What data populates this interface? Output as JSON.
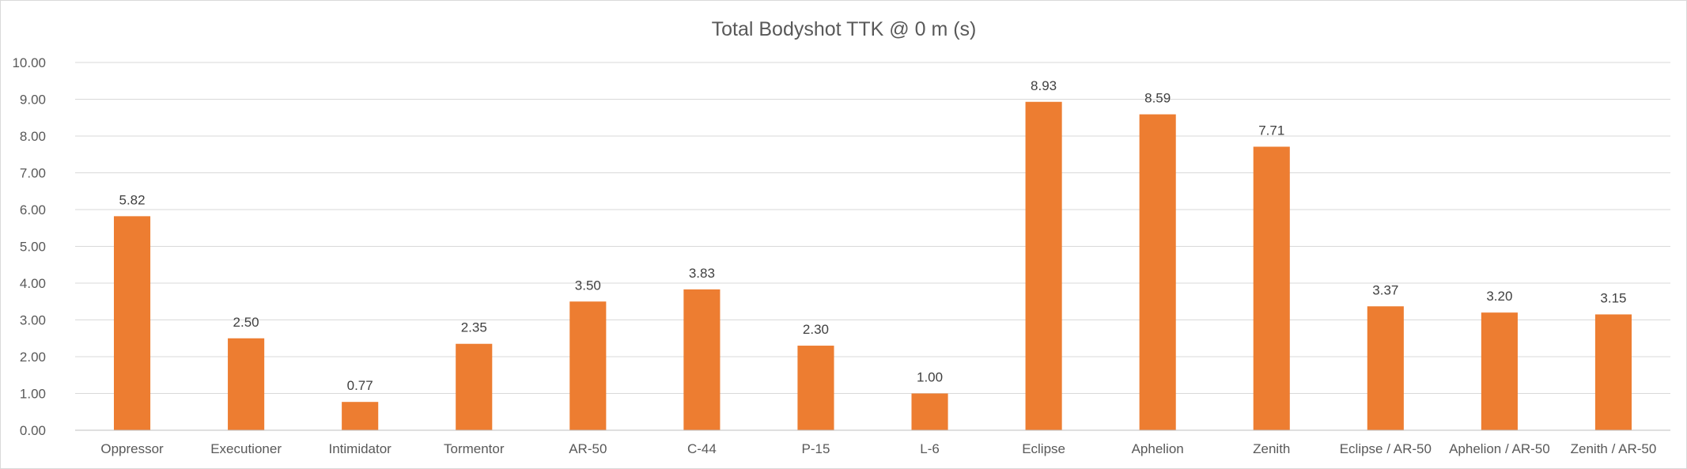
{
  "chart_data": {
    "type": "bar",
    "title": "Total Bodyshot TTK @ 0 m (s)",
    "xlabel": "",
    "ylabel": "",
    "categories": [
      "Oppressor",
      "Executioner",
      "Intimidator",
      "Tormentor",
      "AR-50",
      "C-44",
      "P-15",
      "L-6",
      "Eclipse",
      "Aphelion",
      "Zenith",
      "Eclipse / AR-50",
      "Aphelion / AR-50",
      "Zenith / AR-50"
    ],
    "values": [
      5.82,
      2.5,
      0.77,
      2.35,
      3.5,
      3.83,
      2.3,
      1.0,
      8.93,
      8.59,
      7.71,
      3.37,
      3.2,
      3.15
    ],
    "data_labels": [
      "5.82",
      "2.50",
      "0.77",
      "2.35",
      "3.50",
      "3.83",
      "2.30",
      "1.00",
      "8.93",
      "8.59",
      "7.71",
      "3.37",
      "3.20",
      "3.15"
    ],
    "ylim": [
      0,
      10
    ],
    "yticks": [
      "0.00",
      "1.00",
      "2.00",
      "3.00",
      "4.00",
      "5.00",
      "6.00",
      "7.00",
      "8.00",
      "9.00",
      "10.00"
    ],
    "bar_color": "#ED7D31",
    "grid": true,
    "legend": "none"
  }
}
